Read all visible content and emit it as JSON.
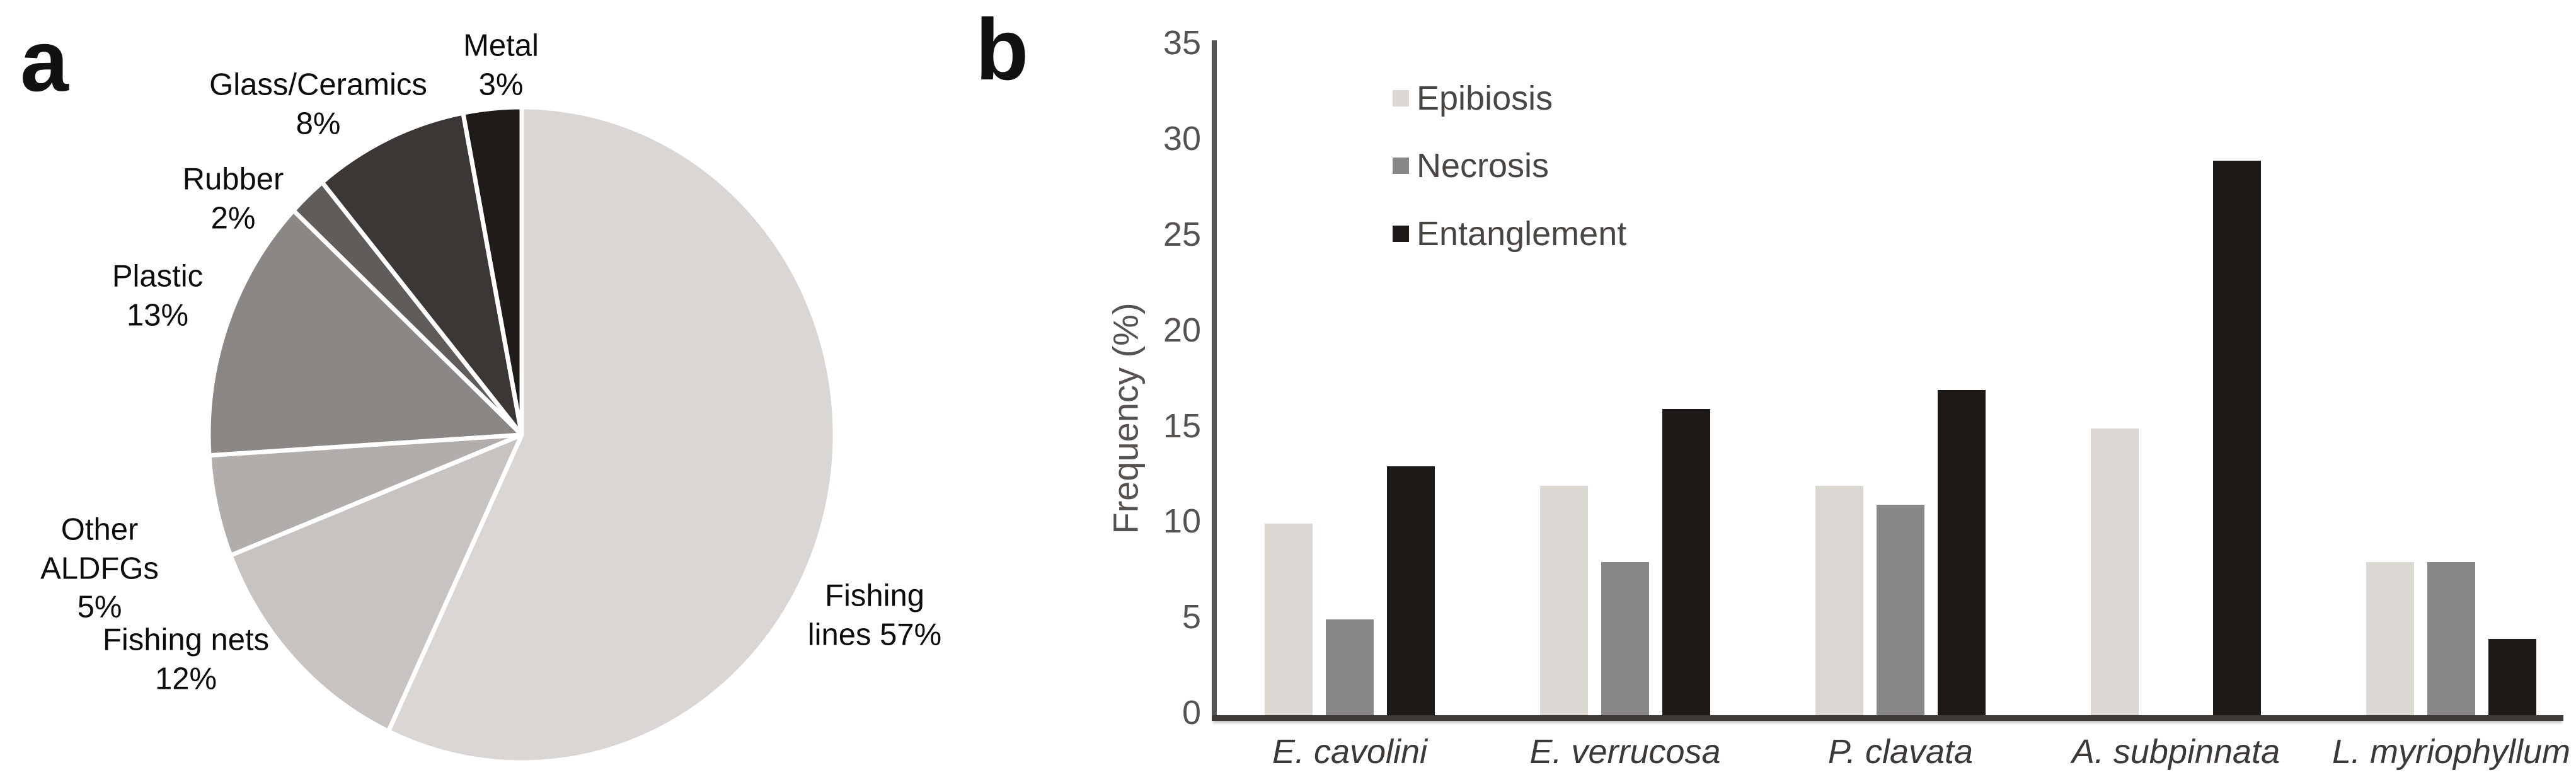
{
  "panels": {
    "a_label": "a",
    "b_label": "b"
  },
  "chart_data": [
    {
      "type": "pie",
      "panel": "a",
      "start_angle_deg": 0,
      "direction": "clockwise",
      "slices": [
        {
          "label": "Fishing lines",
          "pct": 57,
          "display_lines": [
            "Fishing",
            "lines 57%"
          ],
          "color": "#d9d6d3"
        },
        {
          "label": "Fishing nets",
          "pct": 12,
          "display_lines": [
            "Fishing nets",
            "12%"
          ],
          "color": "#c7c3c0"
        },
        {
          "label": "Other ALDFGs",
          "pct": 5,
          "display_lines": [
            "Other",
            "ALDFGs",
            "5%"
          ],
          "color": "#b1adaa"
        },
        {
          "label": "Plastic",
          "pct": 13,
          "display_lines": [
            "Plastic",
            "13%"
          ],
          "color": "#8a8784"
        },
        {
          "label": "Rubber",
          "pct": 2,
          "display_lines": [
            "Rubber",
            "2%"
          ],
          "color": "#5f5c59"
        },
        {
          "label": "Glass/Ceramics",
          "pct": 8,
          "display_lines": [
            "Glass/Ceramics",
            "8%"
          ],
          "color": "#3b3735"
        },
        {
          "label": "Metal",
          "pct": 3,
          "display_lines": [
            "Metal",
            "3%"
          ],
          "color": "#1f1b19"
        }
      ]
    },
    {
      "type": "bar",
      "panel": "b",
      "ylabel": "Frequency (%)",
      "ylim": [
        0,
        35
      ],
      "yticks": [
        35,
        30,
        25,
        20,
        15,
        10,
        5,
        0
      ],
      "grid": false,
      "legend_position": "top-left-inside",
      "categories": [
        "E. cavolini",
        "E. verrucosa",
        "P. clavata",
        "A. subpinnata",
        "L. myriophyllum"
      ],
      "series": [
        {
          "name": "Epibiosis",
          "color": "#dbd7d2",
          "values": [
            10,
            12,
            12,
            15,
            8
          ]
        },
        {
          "name": "Necrosis",
          "color": "#8a8886",
          "values": [
            5,
            8,
            11,
            0,
            8
          ]
        },
        {
          "name": "Entanglement",
          "color": "#1e1a18",
          "values": [
            13,
            16,
            17,
            29,
            4
          ]
        }
      ]
    }
  ]
}
